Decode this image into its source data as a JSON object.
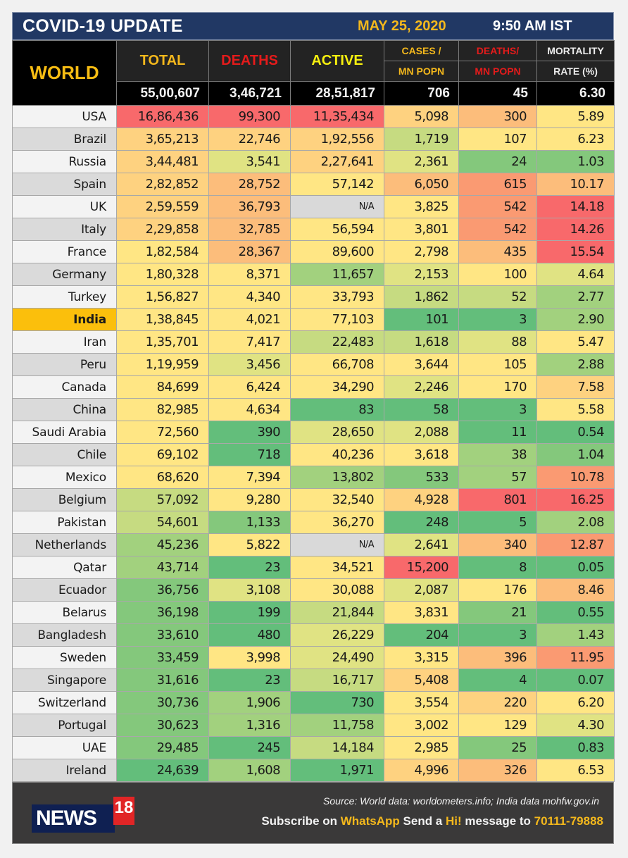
{
  "header": {
    "title": "COVID-19 UPDATE",
    "date": "MAY 25, 2020",
    "time": "9:50 AM IST"
  },
  "columns": {
    "region_label": "WORLD",
    "total": "TOTAL",
    "deaths": "DEATHS",
    "active": "ACTIVE",
    "cases_per_mn_top": "CASES /",
    "cases_per_mn_bottom": "MN POPN",
    "deaths_per_mn_top": "DEATHS/",
    "deaths_per_mn_bottom": "MN POPN",
    "mortality_top": "MORTALITY",
    "mortality_bottom": "RATE (%)"
  },
  "world_totals": {
    "total": "55,00,607",
    "deaths": "3,46,721",
    "active": "28,51,817",
    "cases_per_mn": "706",
    "deaths_per_mn": "45",
    "mortality": "6.30"
  },
  "highlight_country": "India",
  "palette": {
    "R": "#f8696b",
    "O": "#fa9a72",
    "Q": "#fcbd7b",
    "P": "#fed280",
    "Y": "#ffe684",
    "L": "#e0e383",
    "K": "#c6db81",
    "G": "#a2d17e",
    "M": "#84c87c",
    "D": "#63be7b",
    "N": "#d9d9d9"
  },
  "rows": [
    {
      "country": "USA",
      "values": [
        "16,86,436",
        "99,300",
        "11,35,434",
        "5,098",
        "300",
        "5.89"
      ],
      "colors": [
        "R",
        "R",
        "R",
        "P",
        "Q",
        "Y"
      ]
    },
    {
      "country": "Brazil",
      "values": [
        "3,65,213",
        "22,746",
        "1,92,556",
        "1,719",
        "107",
        "6.23"
      ],
      "colors": [
        "P",
        "P",
        "P",
        "K",
        "Y",
        "Y"
      ]
    },
    {
      "country": "Russia",
      "values": [
        "3,44,481",
        "3,541",
        "2,27,641",
        "2,361",
        "24",
        "1.03"
      ],
      "colors": [
        "P",
        "L",
        "P",
        "L",
        "M",
        "M"
      ]
    },
    {
      "country": "Spain",
      "values": [
        "2,82,852",
        "28,752",
        "57,142",
        "6,050",
        "615",
        "10.17"
      ],
      "colors": [
        "P",
        "Q",
        "Y",
        "Q",
        "O",
        "Q"
      ]
    },
    {
      "country": "UK",
      "values": [
        "2,59,559",
        "36,793",
        "N/A",
        "3,825",
        "542",
        "14.18"
      ],
      "colors": [
        "P",
        "Q",
        "N",
        "Y",
        "O",
        "R"
      ]
    },
    {
      "country": "Italy",
      "values": [
        "2,29,858",
        "32,785",
        "56,594",
        "3,801",
        "542",
        "14.26"
      ],
      "colors": [
        "P",
        "Q",
        "Y",
        "Y",
        "O",
        "R"
      ]
    },
    {
      "country": "France",
      "values": [
        "1,82,584",
        "28,367",
        "89,600",
        "2,798",
        "435",
        "15.54"
      ],
      "colors": [
        "Y",
        "Q",
        "Y",
        "Y",
        "Q",
        "R"
      ]
    },
    {
      "country": "Germany",
      "values": [
        "1,80,328",
        "8,371",
        "11,657",
        "2,153",
        "100",
        "4.64"
      ],
      "colors": [
        "Y",
        "Y",
        "G",
        "L",
        "Y",
        "L"
      ]
    },
    {
      "country": "Turkey",
      "values": [
        "1,56,827",
        "4,340",
        "33,793",
        "1,862",
        "52",
        "2.77"
      ],
      "colors": [
        "Y",
        "Y",
        "Y",
        "K",
        "K",
        "G"
      ]
    },
    {
      "country": "India",
      "values": [
        "1,38,845",
        "4,021",
        "77,103",
        "101",
        "3",
        "2.90"
      ],
      "colors": [
        "Y",
        "Y",
        "Y",
        "D",
        "D",
        "G"
      ]
    },
    {
      "country": "Iran",
      "values": [
        "1,35,701",
        "7,417",
        "22,483",
        "1,618",
        "88",
        "5.47"
      ],
      "colors": [
        "Y",
        "Y",
        "K",
        "K",
        "L",
        "Y"
      ]
    },
    {
      "country": "Peru",
      "values": [
        "1,19,959",
        "3,456",
        "66,708",
        "3,644",
        "105",
        "2.88"
      ],
      "colors": [
        "Y",
        "L",
        "Y",
        "Y",
        "Y",
        "G"
      ]
    },
    {
      "country": "Canada",
      "values": [
        "84,699",
        "6,424",
        "34,290",
        "2,246",
        "170",
        "7.58"
      ],
      "colors": [
        "Y",
        "Y",
        "Y",
        "L",
        "Y",
        "P"
      ]
    },
    {
      "country": "China",
      "values": [
        "82,985",
        "4,634",
        "83",
        "58",
        "3",
        "5.58"
      ],
      "colors": [
        "Y",
        "Y",
        "D",
        "D",
        "D",
        "Y"
      ]
    },
    {
      "country": "Saudi Arabia",
      "values": [
        "72,560",
        "390",
        "28,650",
        "2,088",
        "11",
        "0.54"
      ],
      "colors": [
        "Y",
        "D",
        "L",
        "L",
        "D",
        "D"
      ]
    },
    {
      "country": "Chile",
      "values": [
        "69,102",
        "718",
        "40,236",
        "3,618",
        "38",
        "1.04"
      ],
      "colors": [
        "Y",
        "D",
        "Y",
        "Y",
        "G",
        "M"
      ]
    },
    {
      "country": "Mexico",
      "values": [
        "68,620",
        "7,394",
        "13,802",
        "533",
        "57",
        "10.78"
      ],
      "colors": [
        "Y",
        "Y",
        "G",
        "M",
        "G",
        "O"
      ]
    },
    {
      "country": "Belgium",
      "values": [
        "57,092",
        "9,280",
        "32,540",
        "4,928",
        "801",
        "16.25"
      ],
      "colors": [
        "K",
        "Y",
        "Y",
        "P",
        "R",
        "R"
      ]
    },
    {
      "country": "Pakistan",
      "values": [
        "54,601",
        "1,133",
        "36,270",
        "248",
        "5",
        "2.08"
      ],
      "colors": [
        "K",
        "M",
        "Y",
        "D",
        "D",
        "G"
      ]
    },
    {
      "country": "Netherlands",
      "values": [
        "45,236",
        "5,822",
        "N/A",
        "2,641",
        "340",
        "12.87"
      ],
      "colors": [
        "G",
        "Y",
        "N",
        "L",
        "Q",
        "O"
      ]
    },
    {
      "country": "Qatar",
      "values": [
        "43,714",
        "23",
        "34,521",
        "15,200",
        "8",
        "0.05"
      ],
      "colors": [
        "G",
        "D",
        "Y",
        "R",
        "D",
        "D"
      ]
    },
    {
      "country": "Ecuador",
      "values": [
        "36,756",
        "3,108",
        "30,088",
        "2,087",
        "176",
        "8.46"
      ],
      "colors": [
        "M",
        "L",
        "Y",
        "L",
        "Y",
        "Q"
      ]
    },
    {
      "country": "Belarus",
      "values": [
        "36,198",
        "199",
        "21,844",
        "3,831",
        "21",
        "0.55"
      ],
      "colors": [
        "M",
        "D",
        "K",
        "Y",
        "M",
        "D"
      ]
    },
    {
      "country": "Bangladesh",
      "values": [
        "33,610",
        "480",
        "26,229",
        "204",
        "3",
        "1.43"
      ],
      "colors": [
        "M",
        "D",
        "L",
        "D",
        "D",
        "G"
      ]
    },
    {
      "country": "Sweden",
      "values": [
        "33,459",
        "3,998",
        "24,490",
        "3,315",
        "396",
        "11.95"
      ],
      "colors": [
        "M",
        "Y",
        "L",
        "Y",
        "Q",
        "O"
      ]
    },
    {
      "country": "Singapore",
      "values": [
        "31,616",
        "23",
        "16,717",
        "5,408",
        "4",
        "0.07"
      ],
      "colors": [
        "M",
        "D",
        "K",
        "P",
        "D",
        "D"
      ]
    },
    {
      "country": "Switzerland",
      "values": [
        "30,736",
        "1,906",
        "730",
        "3,554",
        "220",
        "6.20"
      ],
      "colors": [
        "M",
        "G",
        "D",
        "Y",
        "P",
        "Y"
      ]
    },
    {
      "country": "Portugal",
      "values": [
        "30,623",
        "1,316",
        "11,758",
        "3,002",
        "129",
        "4.30"
      ],
      "colors": [
        "M",
        "G",
        "G",
        "Y",
        "Y",
        "L"
      ]
    },
    {
      "country": "UAE",
      "values": [
        "29,485",
        "245",
        "14,184",
        "2,985",
        "25",
        "0.83"
      ],
      "colors": [
        "M",
        "D",
        "K",
        "Y",
        "M",
        "D"
      ]
    },
    {
      "country": "Ireland",
      "values": [
        "24,639",
        "1,608",
        "1,971",
        "4,996",
        "326",
        "6.53"
      ],
      "colors": [
        "D",
        "G",
        "D",
        "P",
        "Q",
        "Y"
      ]
    }
  ],
  "footer": {
    "logo_text": "NEWS",
    "logo_number": "18",
    "source": "Source: World data: worldometers.info; India data mohfw.gov.in",
    "subscribe_1": "Subscribe on ",
    "subscribe_app": "WhatsApp",
    "subscribe_2": " Send a ",
    "subscribe_hi": "Hi!",
    "subscribe_3": " message to ",
    "subscribe_number": "70111-79888"
  }
}
